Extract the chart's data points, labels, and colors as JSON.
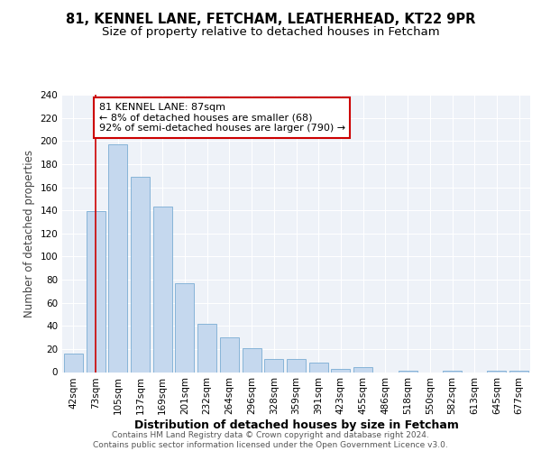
{
  "title1": "81, KENNEL LANE, FETCHAM, LEATHERHEAD, KT22 9PR",
  "title2": "Size of property relative to detached houses in Fetcham",
  "xlabel": "Distribution of detached houses by size in Fetcham",
  "ylabel": "Number of detached properties",
  "bar_color": "#c5d8ee",
  "bar_edge_color": "#7aadd4",
  "categories": [
    "42sqm",
    "73sqm",
    "105sqm",
    "137sqm",
    "169sqm",
    "201sqm",
    "232sqm",
    "264sqm",
    "296sqm",
    "328sqm",
    "359sqm",
    "391sqm",
    "423sqm",
    "455sqm",
    "486sqm",
    "518sqm",
    "550sqm",
    "582sqm",
    "613sqm",
    "645sqm",
    "677sqm"
  ],
  "values": [
    16,
    139,
    197,
    169,
    143,
    77,
    42,
    30,
    21,
    11,
    11,
    8,
    3,
    4,
    0,
    1,
    0,
    1,
    0,
    1,
    1
  ],
  "vline_x": 1,
  "vline_color": "#cc0000",
  "annotation_line1": "81 KENNEL LANE: 87sqm",
  "annotation_line2": "← 8% of detached houses are smaller (68)",
  "annotation_line3": "92% of semi-detached houses are larger (790) →",
  "annotation_box_color": "#ffffff",
  "annotation_box_edge_color": "#cc0000",
  "ylim": [
    0,
    240
  ],
  "yticks": [
    0,
    20,
    40,
    60,
    80,
    100,
    120,
    140,
    160,
    180,
    200,
    220,
    240
  ],
  "footer_text": "Contains HM Land Registry data © Crown copyright and database right 2024.\nContains public sector information licensed under the Open Government Licence v3.0.",
  "background_color": "#eef2f8",
  "grid_color": "#ffffff",
  "title_fontsize": 10.5,
  "subtitle_fontsize": 9.5,
  "tick_fontsize": 7.5,
  "ylabel_fontsize": 8.5,
  "xlabel_fontsize": 9,
  "annotation_fontsize": 8,
  "footer_fontsize": 6.5
}
